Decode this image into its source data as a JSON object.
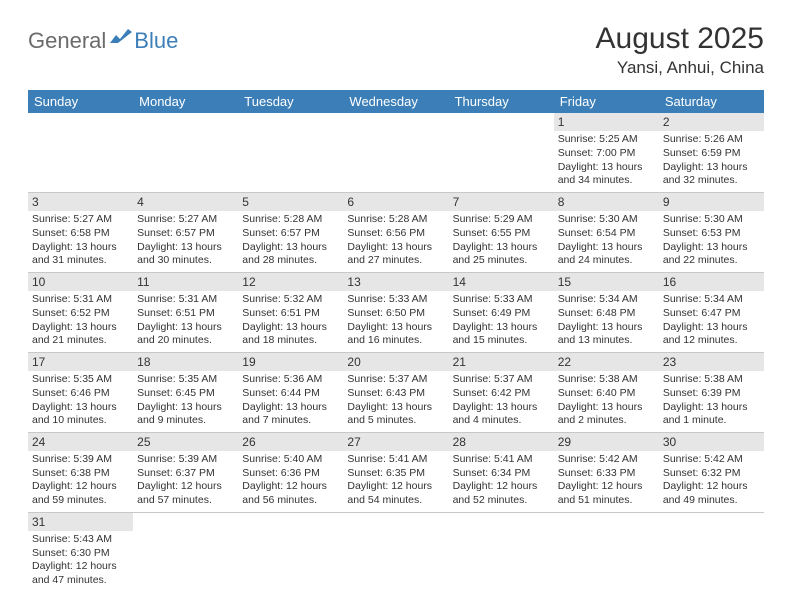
{
  "logo": {
    "text1": "General",
    "text2": "Blue"
  },
  "title": "August 2025",
  "location": "Yansi, Anhui, China",
  "colors": {
    "header_bg": "#3c7fb8",
    "header_text": "#ffffff",
    "daynum_bg": "#e6e6e6",
    "border": "#c8c8c8",
    "text": "#333333",
    "logo_gray": "#6b6b6b",
    "logo_blue": "#3c7fb8"
  },
  "day_headers": [
    "Sunday",
    "Monday",
    "Tuesday",
    "Wednesday",
    "Thursday",
    "Friday",
    "Saturday"
  ],
  "weeks": [
    [
      {
        "n": "",
        "sunrise": "",
        "sunset": "",
        "daylight": ""
      },
      {
        "n": "",
        "sunrise": "",
        "sunset": "",
        "daylight": ""
      },
      {
        "n": "",
        "sunrise": "",
        "sunset": "",
        "daylight": ""
      },
      {
        "n": "",
        "sunrise": "",
        "sunset": "",
        "daylight": ""
      },
      {
        "n": "",
        "sunrise": "",
        "sunset": "",
        "daylight": ""
      },
      {
        "n": "1",
        "sunrise": "Sunrise: 5:25 AM",
        "sunset": "Sunset: 7:00 PM",
        "daylight": "Daylight: 13 hours and 34 minutes."
      },
      {
        "n": "2",
        "sunrise": "Sunrise: 5:26 AM",
        "sunset": "Sunset: 6:59 PM",
        "daylight": "Daylight: 13 hours and 32 minutes."
      }
    ],
    [
      {
        "n": "3",
        "sunrise": "Sunrise: 5:27 AM",
        "sunset": "Sunset: 6:58 PM",
        "daylight": "Daylight: 13 hours and 31 minutes."
      },
      {
        "n": "4",
        "sunrise": "Sunrise: 5:27 AM",
        "sunset": "Sunset: 6:57 PM",
        "daylight": "Daylight: 13 hours and 30 minutes."
      },
      {
        "n": "5",
        "sunrise": "Sunrise: 5:28 AM",
        "sunset": "Sunset: 6:57 PM",
        "daylight": "Daylight: 13 hours and 28 minutes."
      },
      {
        "n": "6",
        "sunrise": "Sunrise: 5:28 AM",
        "sunset": "Sunset: 6:56 PM",
        "daylight": "Daylight: 13 hours and 27 minutes."
      },
      {
        "n": "7",
        "sunrise": "Sunrise: 5:29 AM",
        "sunset": "Sunset: 6:55 PM",
        "daylight": "Daylight: 13 hours and 25 minutes."
      },
      {
        "n": "8",
        "sunrise": "Sunrise: 5:30 AM",
        "sunset": "Sunset: 6:54 PM",
        "daylight": "Daylight: 13 hours and 24 minutes."
      },
      {
        "n": "9",
        "sunrise": "Sunrise: 5:30 AM",
        "sunset": "Sunset: 6:53 PM",
        "daylight": "Daylight: 13 hours and 22 minutes."
      }
    ],
    [
      {
        "n": "10",
        "sunrise": "Sunrise: 5:31 AM",
        "sunset": "Sunset: 6:52 PM",
        "daylight": "Daylight: 13 hours and 21 minutes."
      },
      {
        "n": "11",
        "sunrise": "Sunrise: 5:31 AM",
        "sunset": "Sunset: 6:51 PM",
        "daylight": "Daylight: 13 hours and 20 minutes."
      },
      {
        "n": "12",
        "sunrise": "Sunrise: 5:32 AM",
        "sunset": "Sunset: 6:51 PM",
        "daylight": "Daylight: 13 hours and 18 minutes."
      },
      {
        "n": "13",
        "sunrise": "Sunrise: 5:33 AM",
        "sunset": "Sunset: 6:50 PM",
        "daylight": "Daylight: 13 hours and 16 minutes."
      },
      {
        "n": "14",
        "sunrise": "Sunrise: 5:33 AM",
        "sunset": "Sunset: 6:49 PM",
        "daylight": "Daylight: 13 hours and 15 minutes."
      },
      {
        "n": "15",
        "sunrise": "Sunrise: 5:34 AM",
        "sunset": "Sunset: 6:48 PM",
        "daylight": "Daylight: 13 hours and 13 minutes."
      },
      {
        "n": "16",
        "sunrise": "Sunrise: 5:34 AM",
        "sunset": "Sunset: 6:47 PM",
        "daylight": "Daylight: 13 hours and 12 minutes."
      }
    ],
    [
      {
        "n": "17",
        "sunrise": "Sunrise: 5:35 AM",
        "sunset": "Sunset: 6:46 PM",
        "daylight": "Daylight: 13 hours and 10 minutes."
      },
      {
        "n": "18",
        "sunrise": "Sunrise: 5:35 AM",
        "sunset": "Sunset: 6:45 PM",
        "daylight": "Daylight: 13 hours and 9 minutes."
      },
      {
        "n": "19",
        "sunrise": "Sunrise: 5:36 AM",
        "sunset": "Sunset: 6:44 PM",
        "daylight": "Daylight: 13 hours and 7 minutes."
      },
      {
        "n": "20",
        "sunrise": "Sunrise: 5:37 AM",
        "sunset": "Sunset: 6:43 PM",
        "daylight": "Daylight: 13 hours and 5 minutes."
      },
      {
        "n": "21",
        "sunrise": "Sunrise: 5:37 AM",
        "sunset": "Sunset: 6:42 PM",
        "daylight": "Daylight: 13 hours and 4 minutes."
      },
      {
        "n": "22",
        "sunrise": "Sunrise: 5:38 AM",
        "sunset": "Sunset: 6:40 PM",
        "daylight": "Daylight: 13 hours and 2 minutes."
      },
      {
        "n": "23",
        "sunrise": "Sunrise: 5:38 AM",
        "sunset": "Sunset: 6:39 PM",
        "daylight": "Daylight: 13 hours and 1 minute."
      }
    ],
    [
      {
        "n": "24",
        "sunrise": "Sunrise: 5:39 AM",
        "sunset": "Sunset: 6:38 PM",
        "daylight": "Daylight: 12 hours and 59 minutes."
      },
      {
        "n": "25",
        "sunrise": "Sunrise: 5:39 AM",
        "sunset": "Sunset: 6:37 PM",
        "daylight": "Daylight: 12 hours and 57 minutes."
      },
      {
        "n": "26",
        "sunrise": "Sunrise: 5:40 AM",
        "sunset": "Sunset: 6:36 PM",
        "daylight": "Daylight: 12 hours and 56 minutes."
      },
      {
        "n": "27",
        "sunrise": "Sunrise: 5:41 AM",
        "sunset": "Sunset: 6:35 PM",
        "daylight": "Daylight: 12 hours and 54 minutes."
      },
      {
        "n": "28",
        "sunrise": "Sunrise: 5:41 AM",
        "sunset": "Sunset: 6:34 PM",
        "daylight": "Daylight: 12 hours and 52 minutes."
      },
      {
        "n": "29",
        "sunrise": "Sunrise: 5:42 AM",
        "sunset": "Sunset: 6:33 PM",
        "daylight": "Daylight: 12 hours and 51 minutes."
      },
      {
        "n": "30",
        "sunrise": "Sunrise: 5:42 AM",
        "sunset": "Sunset: 6:32 PM",
        "daylight": "Daylight: 12 hours and 49 minutes."
      }
    ],
    [
      {
        "n": "31",
        "sunrise": "Sunrise: 5:43 AM",
        "sunset": "Sunset: 6:30 PM",
        "daylight": "Daylight: 12 hours and 47 minutes."
      },
      {
        "n": "",
        "sunrise": "",
        "sunset": "",
        "daylight": ""
      },
      {
        "n": "",
        "sunrise": "",
        "sunset": "",
        "daylight": ""
      },
      {
        "n": "",
        "sunrise": "",
        "sunset": "",
        "daylight": ""
      },
      {
        "n": "",
        "sunrise": "",
        "sunset": "",
        "daylight": ""
      },
      {
        "n": "",
        "sunrise": "",
        "sunset": "",
        "daylight": ""
      },
      {
        "n": "",
        "sunrise": "",
        "sunset": "",
        "daylight": ""
      }
    ]
  ]
}
